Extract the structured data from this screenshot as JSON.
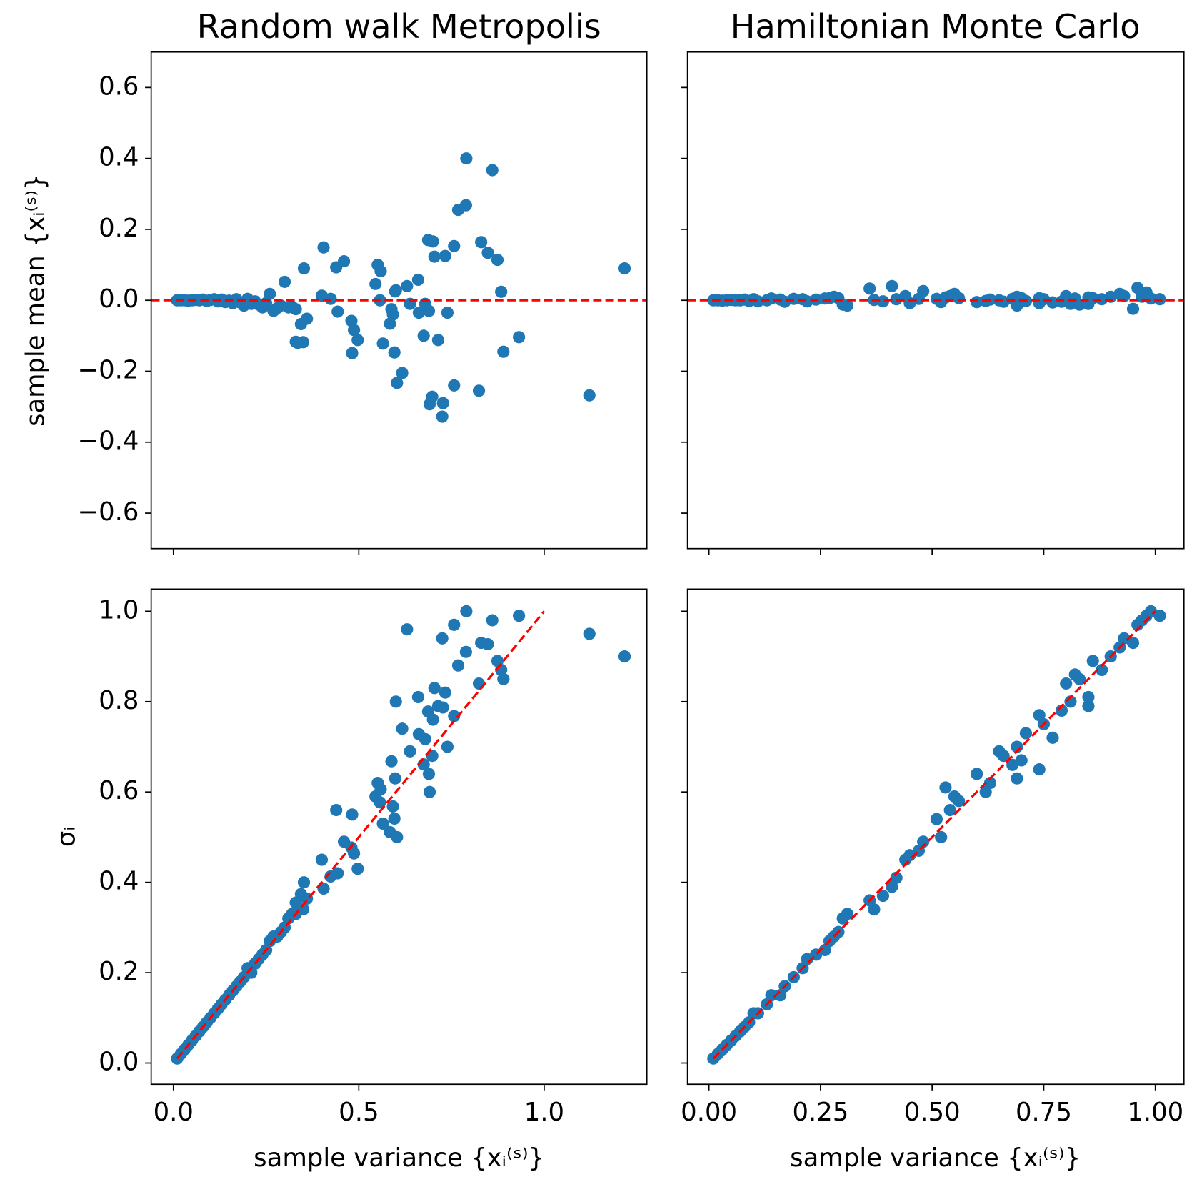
{
  "chart_data": [
    {
      "type": "scatter",
      "title": "Random walk Metropolis",
      "ylabel": "sample mean {xᵢ⁽ˢ⁾}",
      "color": "#1f77b4",
      "xlim": [
        -0.06,
        1.277
      ],
      "ylim": [
        -0.7,
        0.7
      ],
      "xticks": [
        0,
        0.5,
        1
      ],
      "show_xtick_labels": false,
      "yticks": [
        {
          "value": -0.6,
          "label": "−0.6"
        },
        {
          "value": -0.4,
          "label": "−0.4"
        },
        {
          "value": -0.2,
          "label": "−0.2"
        },
        {
          "value": 0,
          "label": "0.0"
        },
        0.2,
        0.4,
        0.6
      ],
      "hline": 0,
      "line_color": "#ff0000",
      "x": [
        0.01,
        0.02,
        0.03,
        0.04,
        0.05,
        0.06,
        0.07,
        0.08,
        0.09,
        0.1,
        0.11,
        0.12,
        0.13,
        0.14,
        0.15,
        0.16,
        0.17,
        0.18,
        0.19,
        0.2,
        0.21,
        0.22,
        0.23,
        0.24,
        0.25,
        0.26,
        0.27,
        0.28,
        0.29,
        0.3,
        0.31,
        0.32,
        0.33,
        0.335,
        0.35,
        1.217,
        1.122,
        0.932,
        0.79,
        0.86,
        0.63,
        0.725,
        0.757,
        0.83,
        0.848,
        0.789,
        0.768,
        0.874,
        0.884,
        0.89,
        0.824,
        0.704,
        0.733,
        0.6,
        0.66,
        0.714,
        0.727,
        0.687,
        0.7,
        0.757,
        0.617,
        0.662,
        0.679,
        0.739,
        0.698,
        0.638,
        0.588,
        0.675,
        0.689,
        0.598,
        0.691,
        0.551,
        0.559,
        0.545,
        0.557,
        0.592,
        0.596,
        0.565,
        0.584,
        0.603,
        0.439,
        0.482,
        0.46,
        0.48,
        0.487,
        0.497,
        0.443,
        0.4,
        0.424,
        0.352,
        0.405,
        0.344,
        0.33,
        0.36
      ],
      "y": [
        0,
        0,
        0,
        -0.001,
        0,
        0.001,
        0,
        0.002,
        -0.002,
        0.001,
        0.003,
        -0.003,
        0.002,
        -0.005,
        -0.001,
        -0.008,
        0.003,
        -0.006,
        -0.015,
        0.004,
        -0.01,
        -0.003,
        -0.012,
        -0.02,
        -0.008,
        0.018,
        -0.03,
        -0.022,
        -0.015,
        0.052,
        -0.02,
        -0.018,
        -0.025,
        -0.12,
        -0.118,
        0.09,
        -0.268,
        -0.104,
        0.4,
        0.367,
        0.04,
        -0.328,
        -0.24,
        0.164,
        0.134,
        0.268,
        0.255,
        0.114,
        0.024,
        -0.145,
        -0.255,
        0.123,
        0.125,
        0.028,
        0.058,
        -0.112,
        -0.29,
        0.17,
        0.166,
        0.153,
        -0.205,
        -0.035,
        -0.01,
        -0.035,
        -0.272,
        -0.01,
        -0.025,
        -0.1,
        -0.03,
        0.025,
        -0.293,
        0.1,
        0.082,
        0.046,
        0.0,
        -0.04,
        -0.147,
        -0.122,
        -0.066,
        -0.233,
        0.093,
        -0.149,
        0.11,
        -0.058,
        -0.084,
        -0.112,
        -0.032,
        0.013,
        0.004,
        0.09,
        0.149,
        -0.067,
        -0.117,
        -0.052
      ]
    },
    {
      "type": "scatter",
      "title": "Hamiltonian Monte Carlo",
      "color": "#1f77b4",
      "xlim": [
        -0.048,
        1.064
      ],
      "ylim": [
        -0.7,
        0.7
      ],
      "xticks": [
        0,
        0.25,
        0.5,
        0.75,
        1
      ],
      "show_xtick_labels": false,
      "yticks": [
        -0.6,
        -0.4,
        -0.2,
        0,
        0.2,
        0.4,
        0.6
      ],
      "show_ytick_labels": false,
      "hline": 0,
      "line_color": "#ff0000",
      "x": [
        0.01,
        0.02,
        0.03,
        0.04,
        0.05,
        0.06,
        0.07,
        0.08,
        0.09,
        0.1,
        0.11,
        0.13,
        0.14,
        0.16,
        0.17,
        0.19,
        0.21,
        0.22,
        0.24,
        0.26,
        0.27,
        0.28,
        0.29,
        0.3,
        0.31,
        0.36,
        0.37,
        0.39,
        0.41,
        0.42,
        0.44,
        0.45,
        0.47,
        0.48,
        0.51,
        0.52,
        0.53,
        0.54,
        0.55,
        0.56,
        0.6,
        0.62,
        0.63,
        0.65,
        0.66,
        0.68,
        0.69,
        0.69,
        0.7,
        0.71,
        0.74,
        0.74,
        0.75,
        0.77,
        0.79,
        0.8,
        0.81,
        0.82,
        0.83,
        0.85,
        0.85,
        0.86,
        0.88,
        0.9,
        0.92,
        0.93,
        0.95,
        0.96,
        0.97,
        0.98,
        0.99,
        1.01
      ],
      "y": [
        0,
        0,
        -0.001,
        0,
        0.001,
        0,
        0,
        0.002,
        -0.002,
        0.003,
        -0.003,
        0,
        0.005,
        0.002,
        -0.004,
        0.004,
        0.003,
        -0.003,
        0.002,
        0.005,
        0.006,
        0.01,
        0.006,
        -0.012,
        -0.015,
        0.033,
        0.001,
        -0.003,
        0.04,
        0.003,
        0.012,
        -0.008,
        0.004,
        0.026,
        0.004,
        -0.005,
        0.008,
        0.012,
        0.018,
        0.006,
        -0.005,
        -0.002,
        0.002,
        0.0,
        -0.004,
        0.004,
        0.01,
        -0.015,
        0.006,
        -0.002,
        0.006,
        -0.008,
        0.003,
        -0.006,
        -0.004,
        0.012,
        -0.01,
        0.005,
        -0.012,
        -0.01,
        0.008,
        0.006,
        0.003,
        0.01,
        0.018,
        0.012,
        -0.024,
        0.035,
        0.01,
        0.022,
        0.005,
        0.003
      ]
    },
    {
      "type": "scatter",
      "xlabel": "sample variance {xᵢ⁽ˢ⁾}",
      "ylabel": "σᵢ",
      "color": "#1f77b4",
      "xlim": [
        -0.06,
        1.277
      ],
      "ylim": [
        -0.047,
        1.049
      ],
      "xticks": [
        {
          "value": 0,
          "label": "0.0"
        },
        0.5,
        {
          "value": 1,
          "label": "1.0"
        }
      ],
      "yticks": [
        {
          "value": 0,
          "label": "0.0"
        },
        0.2,
        0.4,
        0.6,
        0.8,
        {
          "value": 1,
          "label": "1.0"
        }
      ],
      "ref_line": {
        "x": [
          0.01,
          1.0
        ],
        "y": [
          0.01,
          1.0
        ]
      },
      "line_color": "#ff0000",
      "x": [
        0.01,
        0.02,
        0.03,
        0.04,
        0.05,
        0.06,
        0.07,
        0.08,
        0.09,
        0.1,
        0.11,
        0.12,
        0.13,
        0.14,
        0.15,
        0.16,
        0.17,
        0.18,
        0.19,
        0.2,
        0.21,
        0.22,
        0.23,
        0.24,
        0.25,
        0.26,
        0.27,
        0.28,
        0.29,
        0.3,
        0.31,
        0.32,
        0.33,
        0.335,
        0.35,
        1.217,
        1.122,
        0.932,
        0.79,
        0.86,
        0.63,
        0.725,
        0.757,
        0.83,
        0.848,
        0.789,
        0.768,
        0.874,
        0.884,
        0.89,
        0.824,
        0.704,
        0.733,
        0.6,
        0.66,
        0.714,
        0.727,
        0.687,
        0.7,
        0.757,
        0.617,
        0.662,
        0.679,
        0.739,
        0.698,
        0.638,
        0.588,
        0.675,
        0.689,
        0.598,
        0.691,
        0.551,
        0.559,
        0.545,
        0.557,
        0.592,
        0.596,
        0.565,
        0.584,
        0.603,
        0.439,
        0.482,
        0.46,
        0.48,
        0.487,
        0.497,
        0.443,
        0.4,
        0.424,
        0.352,
        0.405,
        0.344,
        0.33,
        0.36
      ],
      "y": [
        0.01,
        0.02,
        0.03,
        0.04,
        0.05,
        0.06,
        0.07,
        0.08,
        0.09,
        0.1,
        0.11,
        0.12,
        0.13,
        0.14,
        0.15,
        0.16,
        0.17,
        0.18,
        0.19,
        0.21,
        0.2,
        0.22,
        0.23,
        0.24,
        0.25,
        0.27,
        0.28,
        0.28,
        0.29,
        0.3,
        0.32,
        0.33,
        0.33,
        0.34,
        0.34,
        0.9,
        0.95,
        0.99,
        1.0,
        0.98,
        0.96,
        0.94,
        0.97,
        0.93,
        0.927,
        0.91,
        0.88,
        0.89,
        0.87,
        0.85,
        0.84,
        0.83,
        0.82,
        0.8,
        0.81,
        0.79,
        0.787,
        0.778,
        0.76,
        0.768,
        0.74,
        0.728,
        0.717,
        0.7,
        0.68,
        0.69,
        0.668,
        0.661,
        0.64,
        0.63,
        0.6,
        0.62,
        0.606,
        0.59,
        0.577,
        0.568,
        0.541,
        0.53,
        0.511,
        0.5,
        0.56,
        0.55,
        0.49,
        0.477,
        0.464,
        0.43,
        0.42,
        0.45,
        0.413,
        0.4,
        0.386,
        0.374,
        0.355,
        0.364
      ]
    },
    {
      "type": "scatter",
      "xlabel": "sample variance {xᵢ⁽ˢ⁾}",
      "color": "#1f77b4",
      "xlim": [
        -0.048,
        1.064
      ],
      "ylim": [
        -0.047,
        1.049
      ],
      "xticks": [
        {
          "value": 0,
          "label": "0.00"
        },
        0.25,
        {
          "value": 0.5,
          "label": "0.50"
        },
        0.75,
        {
          "value": 1,
          "label": "1.00"
        }
      ],
      "yticks": [
        0,
        0.2,
        0.4,
        0.6,
        0.8,
        1
      ],
      "show_ytick_labels": false,
      "ref_line": {
        "x": [
          0.01,
          1.0
        ],
        "y": [
          0.01,
          1.0
        ]
      },
      "line_color": "#ff0000",
      "x": [
        0.01,
        0.02,
        0.03,
        0.04,
        0.05,
        0.06,
        0.07,
        0.08,
        0.09,
        0.1,
        0.11,
        0.13,
        0.14,
        0.16,
        0.17,
        0.19,
        0.21,
        0.22,
        0.24,
        0.26,
        0.27,
        0.28,
        0.29,
        0.3,
        0.31,
        0.36,
        0.37,
        0.39,
        0.41,
        0.42,
        0.44,
        0.45,
        0.47,
        0.48,
        0.51,
        0.52,
        0.53,
        0.54,
        0.55,
        0.56,
        0.6,
        0.62,
        0.63,
        0.65,
        0.66,
        0.68,
        0.69,
        0.69,
        0.7,
        0.71,
        0.74,
        0.74,
        0.75,
        0.77,
        0.79,
        0.8,
        0.81,
        0.82,
        0.83,
        0.85,
        0.85,
        0.86,
        0.88,
        0.9,
        0.92,
        0.93,
        0.95,
        0.96,
        0.97,
        0.98,
        0.99,
        1.01
      ],
      "y": [
        0.01,
        0.02,
        0.03,
        0.04,
        0.05,
        0.06,
        0.07,
        0.08,
        0.09,
        0.11,
        0.11,
        0.13,
        0.15,
        0.15,
        0.17,
        0.19,
        0.21,
        0.23,
        0.24,
        0.25,
        0.27,
        0.28,
        0.29,
        0.32,
        0.33,
        0.36,
        0.34,
        0.37,
        0.39,
        0.41,
        0.45,
        0.46,
        0.47,
        0.49,
        0.54,
        0.5,
        0.61,
        0.56,
        0.59,
        0.58,
        0.64,
        0.6,
        0.62,
        0.69,
        0.68,
        0.66,
        0.7,
        0.63,
        0.67,
        0.73,
        0.77,
        0.65,
        0.75,
        0.72,
        0.78,
        0.84,
        0.8,
        0.86,
        0.85,
        0.79,
        0.81,
        0.89,
        0.87,
        0.9,
        0.92,
        0.94,
        0.93,
        0.97,
        0.98,
        0.99,
        1.0,
        0.99
      ]
    }
  ]
}
